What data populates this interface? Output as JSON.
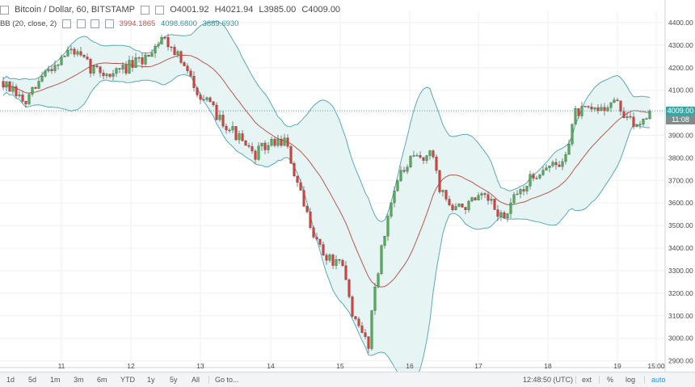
{
  "header": {
    "collapse_icon": "square-minus-icon",
    "symbol": "Bitcoin / Dollar, 60, BITSTAMP",
    "open": "O4001.92",
    "high": "H4021.94",
    "low": "L3985.00",
    "close": "C4009.00"
  },
  "indicator": {
    "label": "BB (20, close, 2)",
    "middle": "3994.1865",
    "upper": "4098.6800",
    "lower": "3889.6930"
  },
  "price_tags": {
    "last": "4009.00",
    "countdown": "11:08"
  },
  "bottom_bar": {
    "ranges": [
      "1d",
      "5d",
      "1m",
      "3m",
      "6m",
      "YTD",
      "1y",
      "5y",
      "All"
    ],
    "goto": "Go to...",
    "clock": "12:48:50 (UTC)",
    "ext": "ext",
    "percent": "%",
    "log": "log",
    "auto": "auto"
  },
  "colors": {
    "up": "#4caf50",
    "down": "#e53935",
    "band_line": "#5aaab5",
    "band_fill": "#e6f5f4",
    "basis": "#b85750",
    "price_tag": "#36a7a3",
    "countdown_tag": "#7f8d8c",
    "grid": "#eef0f2"
  },
  "chart_data": {
    "type": "candlestick",
    "y_range": [
      2870,
      4450
    ],
    "y_ticks": [
      "2900.00",
      "3000.00",
      "3100.00",
      "3200.00",
      "3300.00",
      "3400.00",
      "3500.00",
      "3600.00",
      "3700.00",
      "3800.00",
      "3900.00",
      "4000.00",
      "4100.00",
      "4200.00",
      "4300.00",
      "4400.00"
    ],
    "x_ticks": [
      "11",
      "12",
      "13",
      "14",
      "15",
      "16",
      "17",
      "18",
      "19",
      "15:00"
    ],
    "last_price": 4009,
    "candle_count": 201,
    "start_price": 4140,
    "path_anchors": [
      [
        0,
        4140
      ],
      [
        8,
        4040
      ],
      [
        14,
        4180
      ],
      [
        22,
        4280
      ],
      [
        28,
        4200
      ],
      [
        34,
        4170
      ],
      [
        44,
        4230
      ],
      [
        50,
        4340
      ],
      [
        54,
        4280
      ],
      [
        58,
        4170
      ],
      [
        64,
        4040
      ],
      [
        72,
        3920
      ],
      [
        78,
        3810
      ],
      [
        83,
        3860
      ],
      [
        88,
        3880
      ],
      [
        94,
        3580
      ],
      [
        100,
        3370
      ],
      [
        106,
        3310
      ],
      [
        110,
        3060
      ],
      [
        114,
        2980
      ],
      [
        116,
        3240
      ],
      [
        122,
        3680
      ],
      [
        128,
        3800
      ],
      [
        134,
        3810
      ],
      [
        136,
        3670
      ],
      [
        140,
        3570
      ],
      [
        150,
        3620
      ],
      [
        156,
        3530
      ],
      [
        160,
        3640
      ],
      [
        168,
        3760
      ],
      [
        174,
        3770
      ],
      [
        178,
        4000
      ],
      [
        184,
        4010
      ],
      [
        190,
        4050
      ],
      [
        196,
        3940
      ],
      [
        201,
        4009
      ]
    ],
    "noise_seed": 7,
    "bollinger": {
      "period": 20,
      "stddev": 2
    }
  }
}
